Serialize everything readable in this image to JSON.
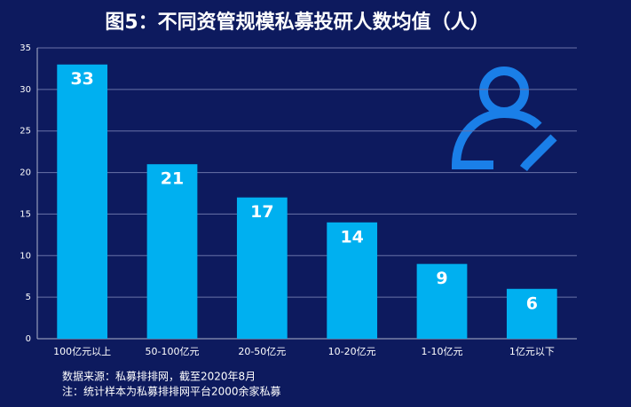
{
  "chart_data": {
    "type": "bar",
    "title": "图5：不同资管规模私募投研人数均值（人）",
    "categories": [
      "100亿元以上",
      "50-100亿元",
      "20-50亿元",
      "10-20亿元",
      "1-10亿元",
      "1亿元以下"
    ],
    "values": [
      33,
      21,
      17,
      14,
      9,
      6
    ],
    "color": "#00b0f0",
    "ylim": [
      0,
      35
    ],
    "yticks": [
      0,
      5,
      10,
      15,
      20,
      25,
      30,
      35
    ],
    "grid": true,
    "notes": [
      "数据来源：私募排排网，截至2020年8月",
      "注：统计样本为私募排排网平台2000余家私募"
    ]
  }
}
